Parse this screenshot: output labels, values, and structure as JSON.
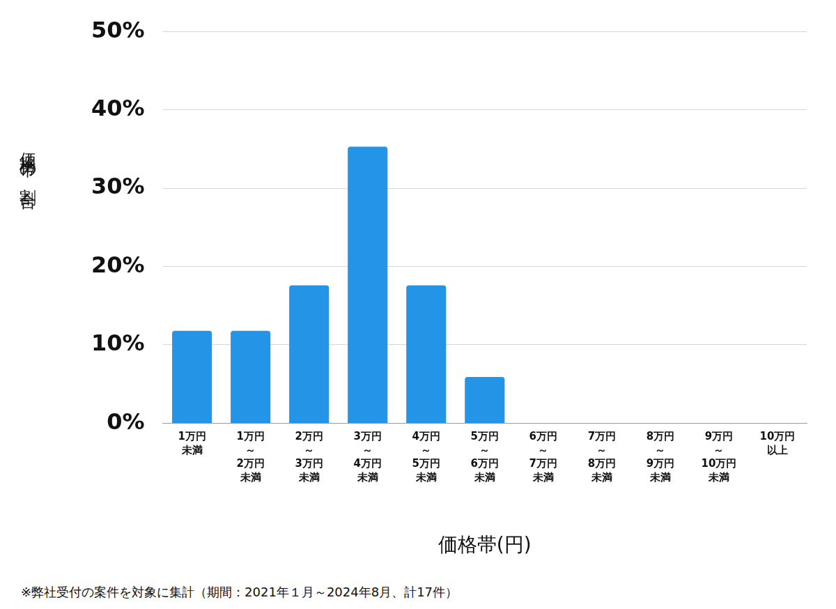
{
  "chart_data": {
    "type": "bar",
    "x_label": "価格帯(円)",
    "y_label": "価格帯の割合",
    "footnote": "※弊社受付の案件を対象に集計（期間：2021年１月～2024年8月、計17件）",
    "categories": [
      [
        "1万円",
        "未満"
      ],
      [
        "1万円",
        "～",
        "2万円",
        "未満"
      ],
      [
        "2万円",
        "～",
        "3万円",
        "未満"
      ],
      [
        "3万円",
        "～",
        "4万円",
        "未満"
      ],
      [
        "4万円",
        "～",
        "5万円",
        "未満"
      ],
      [
        "5万円",
        "～",
        "6万円",
        "未満"
      ],
      [
        "6万円",
        "～",
        "7万円",
        "未満"
      ],
      [
        "7万円",
        "～",
        "8万円",
        "未満"
      ],
      [
        "8万円",
        "～",
        "9万円",
        "未満"
      ],
      [
        "9万円",
        "～",
        "10万円",
        "未満"
      ],
      [
        "10万円",
        "以上"
      ]
    ],
    "values": [
      11.8,
      11.8,
      17.6,
      35.3,
      17.6,
      5.9,
      0,
      0,
      0,
      0,
      0
    ],
    "color": "#2394e6",
    "ylim": [
      0,
      50
    ],
    "yticks": [
      {
        "value": 0,
        "label": "0%"
      },
      {
        "value": 10,
        "label": "10%"
      },
      {
        "value": 20,
        "label": "20%"
      },
      {
        "value": 30,
        "label": "30%"
      },
      {
        "value": 40,
        "label": "40%"
      },
      {
        "value": 50,
        "label": "50%"
      }
    ],
    "grid": true
  }
}
